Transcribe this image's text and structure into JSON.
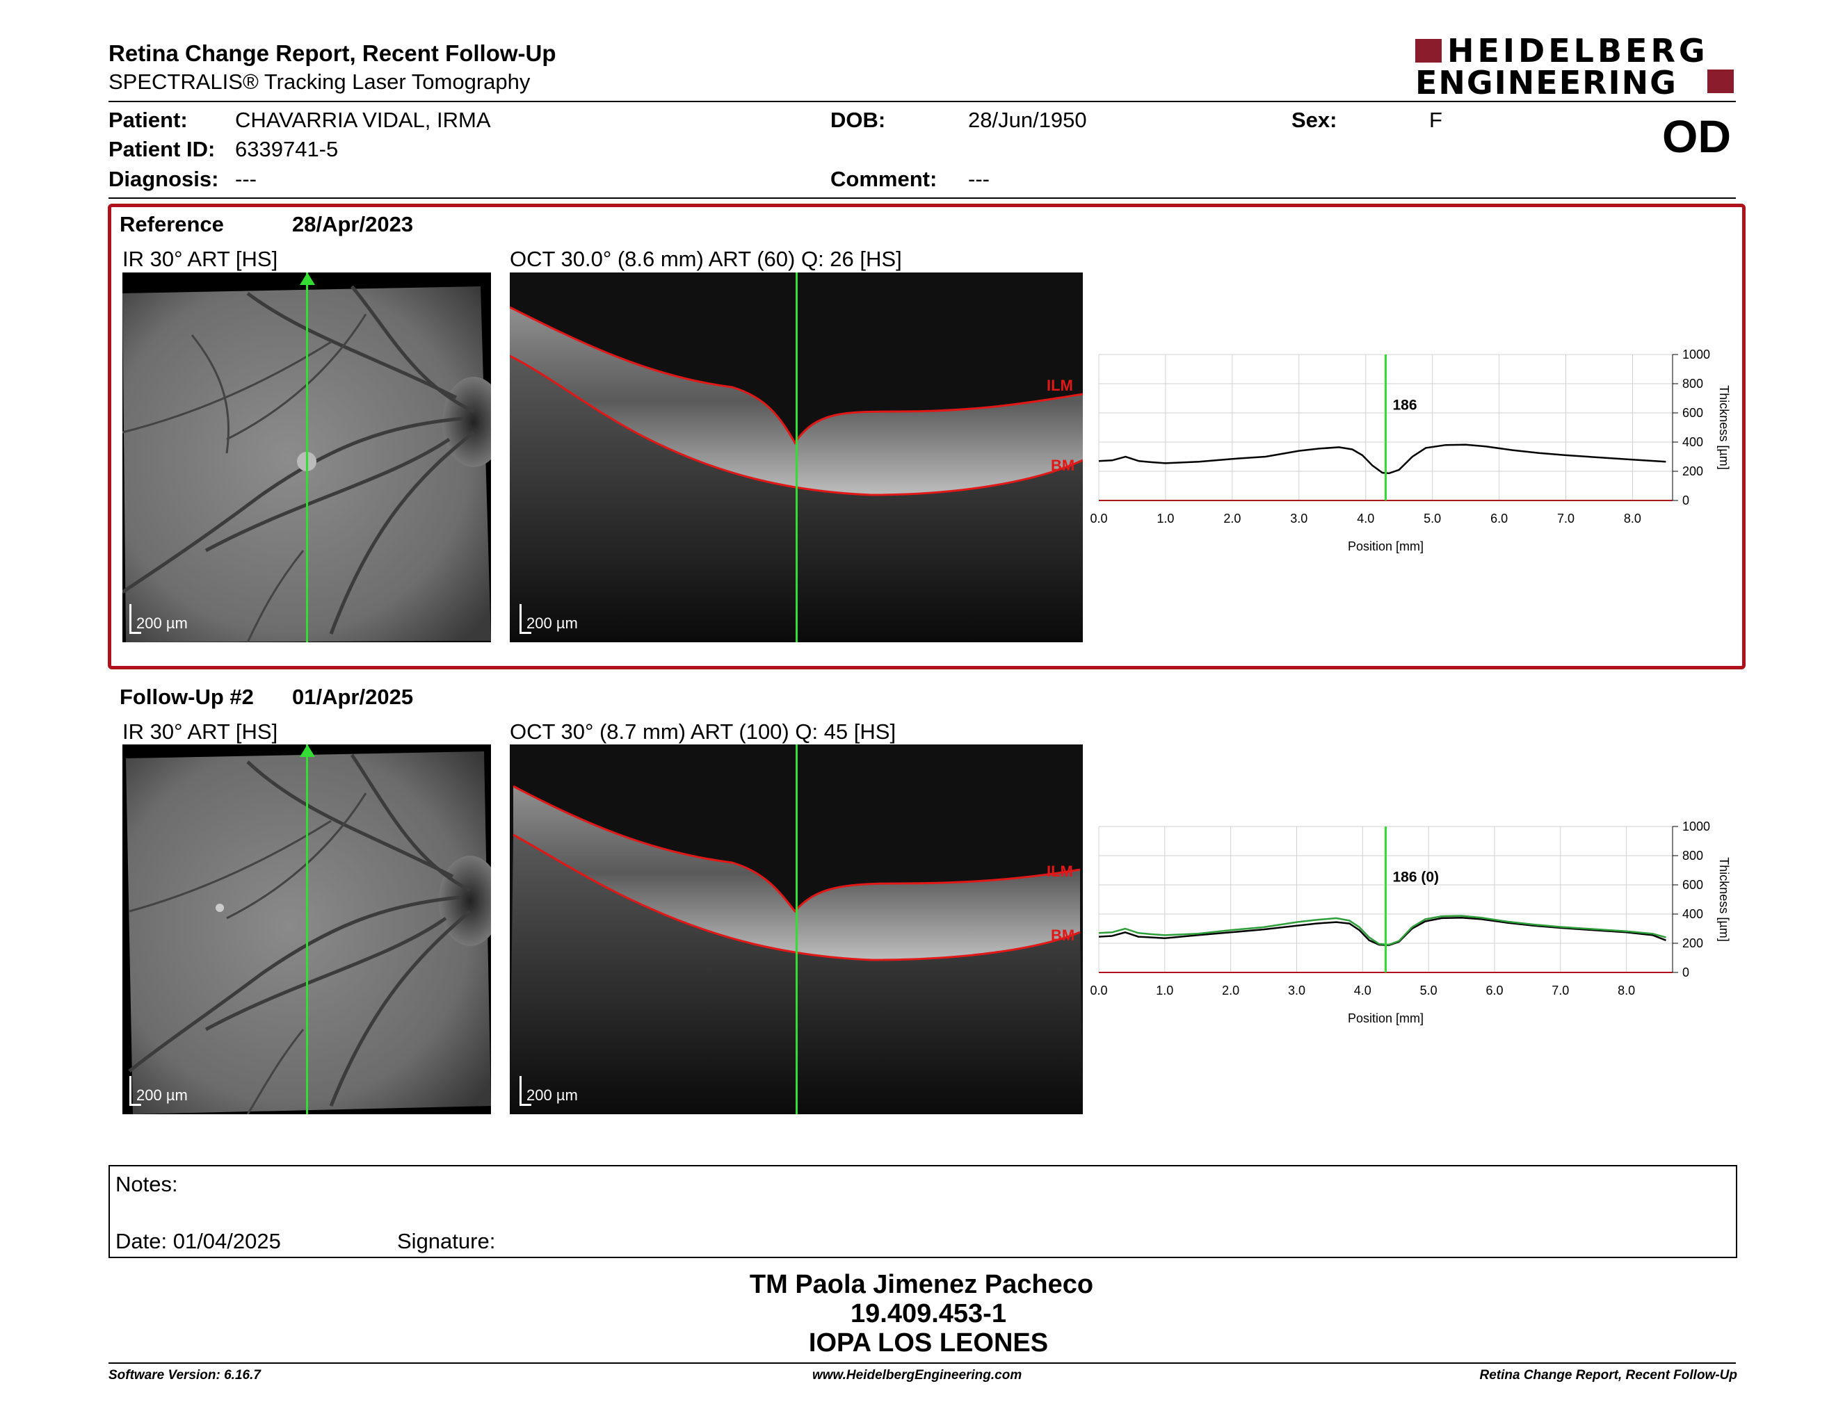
{
  "header": {
    "title": "Retina Change Report, Recent Follow-Up",
    "subtitle": "SPECTRALIS® Tracking Laser Tomography",
    "brand_line1": "HEIDELBERG",
    "brand_line2": "ENGINEERING",
    "eye": "OD"
  },
  "patient": {
    "patient_label": "Patient:",
    "patient_value": "CHAVARRIA VIDAL, IRMA",
    "id_label": "Patient ID:",
    "id_value": "6339741-5",
    "diagnosis_label": "Diagnosis:",
    "diagnosis_value": "---",
    "dob_label": "DOB:",
    "dob_value": "28/Jun/1950",
    "comment_label": "Comment:",
    "comment_value": "---",
    "sex_label": "Sex:",
    "sex_value": "F"
  },
  "reference": {
    "label": "Reference",
    "date": "28/Apr/2023",
    "ir_title": "IR 30° ART [HS]",
    "oct_title": "OCT 30.0° (8.6 mm) ART (60) Q: 26 [HS]",
    "ir_scale": "200 µm",
    "oct_scale": "200 µm",
    "ilm": "ILM",
    "bm": "BM"
  },
  "followup": {
    "label": "Follow-Up #2",
    "date": "01/Apr/2025",
    "ir_title": "IR 30° ART [HS]",
    "oct_title": "OCT 30° (8.7 mm) ART (100) Q: 45 [HS]",
    "ir_scale": "200 µm",
    "oct_scale": "200 µm",
    "ilm": "ILM",
    "bm": "BM"
  },
  "chart_data": [
    {
      "type": "line",
      "xlabel": "Position [mm]",
      "ylabel": "Thickness [µm]",
      "xlim": [
        0,
        8.6
      ],
      "ylim": [
        0,
        1000
      ],
      "x_ticks": [
        "0.0",
        "1.0",
        "2.0",
        "3.0",
        "4.0",
        "5.0",
        "6.0",
        "7.0",
        "8.0"
      ],
      "y_ticks": [
        "0",
        "200",
        "400",
        "600",
        "800",
        "1000"
      ],
      "marker_x": 4.3,
      "marker_label": "186",
      "series": [
        {
          "color": "#000000",
          "x": [
            0.0,
            0.2,
            0.4,
            0.6,
            0.8,
            1.0,
            1.5,
            2.0,
            2.5,
            3.0,
            3.3,
            3.6,
            3.8,
            3.95,
            4.1,
            4.25,
            4.35,
            4.5,
            4.7,
            4.9,
            5.2,
            5.5,
            5.8,
            6.2,
            6.6,
            7.0,
            7.5,
            8.0,
            8.5
          ],
          "y": [
            270,
            275,
            300,
            270,
            262,
            255,
            265,
            285,
            300,
            340,
            355,
            365,
            350,
            310,
            240,
            190,
            186,
            210,
            300,
            360,
            380,
            382,
            370,
            345,
            325,
            310,
            295,
            280,
            265
          ]
        }
      ]
    },
    {
      "type": "line",
      "xlabel": "Position [mm]",
      "ylabel": "Thickness [µm]",
      "xlim": [
        0,
        8.7
      ],
      "ylim": [
        0,
        1000
      ],
      "x_ticks": [
        "0.0",
        "1.0",
        "2.0",
        "3.0",
        "4.0",
        "5.0",
        "6.0",
        "7.0",
        "8.0"
      ],
      "y_ticks": [
        "0",
        "200",
        "400",
        "600",
        "800",
        "1000"
      ],
      "marker_x": 4.35,
      "marker_label": "186 (0)",
      "series": [
        {
          "color": "#000000",
          "x": [
            0.0,
            0.2,
            0.4,
            0.6,
            0.8,
            1.0,
            1.5,
            2.0,
            2.5,
            3.0,
            3.3,
            3.6,
            3.8,
            3.95,
            4.1,
            4.25,
            4.4,
            4.55,
            4.75,
            4.95,
            5.2,
            5.5,
            5.8,
            6.2,
            6.6,
            7.0,
            7.5,
            8.0,
            8.4,
            8.6
          ],
          "y": [
            245,
            250,
            275,
            245,
            240,
            235,
            255,
            275,
            295,
            320,
            335,
            345,
            335,
            290,
            220,
            190,
            186,
            210,
            300,
            350,
            372,
            375,
            365,
            340,
            320,
            305,
            290,
            275,
            255,
            220
          ]
        },
        {
          "color": "#2e9e3a",
          "x": [
            0.0,
            0.2,
            0.4,
            0.6,
            0.8,
            1.0,
            1.5,
            2.0,
            2.5,
            3.0,
            3.3,
            3.6,
            3.8,
            3.95,
            4.1,
            4.25,
            4.4,
            4.55,
            4.75,
            4.95,
            5.2,
            5.5,
            5.8,
            6.2,
            6.6,
            7.0,
            7.5,
            8.0,
            8.4,
            8.6
          ],
          "y": [
            270,
            275,
            300,
            270,
            262,
            255,
            265,
            290,
            310,
            345,
            360,
            372,
            355,
            310,
            240,
            195,
            190,
            215,
            310,
            365,
            385,
            388,
            375,
            348,
            328,
            312,
            297,
            282,
            265,
            240
          ]
        }
      ]
    }
  ],
  "notes": {
    "notes_label": "Notes:",
    "date_label": "Date: 01/04/2025",
    "signature_label": "Signature:"
  },
  "stamp": {
    "line1": "TM Paola Jimenez Pacheco",
    "line2": "19.409.453-1",
    "line3": "IOPA LOS LEONES"
  },
  "footer": {
    "software": "Software Version: 6.16.7",
    "website": "www.HeidelbergEngineering.com",
    "report": "Retina Change Report, Recent Follow-Up"
  },
  "colors": {
    "frame_red": "#b0121b",
    "marker_green": "#33dd33",
    "layer_red": "#e01818"
  }
}
